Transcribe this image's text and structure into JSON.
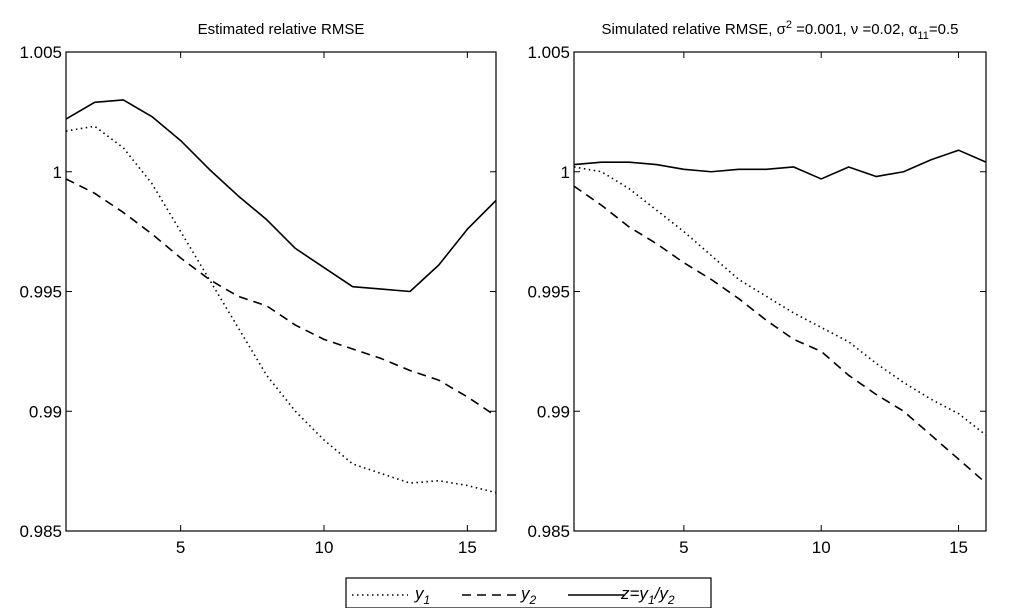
{
  "chart_data": [
    {
      "type": "line",
      "title": "Estimated relative RMSE",
      "xlabel": "",
      "ylabel": "",
      "xlim": [
        1,
        16
      ],
      "ylim": [
        0.985,
        1.005
      ],
      "xticks": [
        5,
        10,
        15
      ],
      "yticks": [
        0.985,
        0.99,
        0.995,
        1,
        1.005
      ],
      "ytick_labels": [
        "0.985",
        "0.99",
        "0.995",
        "1",
        "1.005"
      ],
      "grid": false,
      "x": [
        1,
        2,
        3,
        4,
        5,
        6,
        7,
        8,
        9,
        10,
        11,
        12,
        13,
        14,
        15,
        16
      ],
      "series": [
        {
          "key": "y1",
          "style": "dotted",
          "values": [
            1.0017,
            1.0019,
            1.001,
            0.9995,
            0.9975,
            0.9955,
            0.9935,
            0.9915,
            0.99,
            0.9888,
            0.9878,
            0.9874,
            0.987,
            0.9871,
            0.9869,
            0.9866
          ]
        },
        {
          "key": "y2",
          "style": "dashed",
          "values": [
            0.9997,
            0.9991,
            0.9983,
            0.9974,
            0.9964,
            0.9955,
            0.9948,
            0.9944,
            0.9936,
            0.993,
            0.9926,
            0.9922,
            0.9917,
            0.9913,
            0.9906,
            0.9898
          ]
        },
        {
          "key": "z",
          "style": "solid",
          "values": [
            1.0022,
            1.0029,
            1.003,
            1.0023,
            1.0013,
            1.0001,
            0.999,
            0.998,
            0.9968,
            0.996,
            0.9952,
            0.9951,
            0.995,
            0.9961,
            0.9976,
            0.9988
          ]
        }
      ]
    },
    {
      "type": "line",
      "title": "Simulated relative RMSE, σ",
      "title_sup": "2",
      "title_rest": " =0.001, ν =0.02, α",
      "title_sub": "11",
      "title_end": "=0.5",
      "xlabel": "",
      "ylabel": "",
      "xlim": [
        1,
        16
      ],
      "ylim": [
        0.985,
        1.005
      ],
      "xticks": [
        5,
        10,
        15
      ],
      "yticks": [
        0.985,
        0.99,
        0.995,
        1,
        1.005
      ],
      "ytick_labels": [
        "0.985",
        "0.99",
        "0.995",
        "1",
        "1.005"
      ],
      "grid": false,
      "x": [
        1,
        2,
        3,
        4,
        5,
        6,
        7,
        8,
        9,
        10,
        11,
        12,
        13,
        14,
        15,
        16
      ],
      "series": [
        {
          "key": "y1",
          "style": "dotted",
          "values": [
            1.0002,
            1.0,
            0.9993,
            0.9984,
            0.9975,
            0.9965,
            0.9955,
            0.9948,
            0.9941,
            0.9935,
            0.9929,
            0.992,
            0.9912,
            0.9905,
            0.9899,
            0.989
          ]
        },
        {
          "key": "y2",
          "style": "dashed",
          "values": [
            0.9994,
            0.9986,
            0.9977,
            0.997,
            0.9962,
            0.9955,
            0.9947,
            0.9938,
            0.993,
            0.9925,
            0.9915,
            0.9907,
            0.99,
            0.989,
            0.988,
            0.987
          ]
        },
        {
          "key": "z",
          "style": "solid",
          "values": [
            1.0003,
            1.0004,
            1.0004,
            1.0003,
            1.0001,
            1.0,
            1.0001,
            1.0001,
            1.0002,
            0.9997,
            1.0002,
            0.9998,
            1.0,
            1.0005,
            1.0009,
            1.0004
          ]
        }
      ]
    }
  ],
  "legend": {
    "placement": "bottom-center",
    "entries": [
      {
        "key": "y1",
        "style": "dotted",
        "base": "y",
        "sub": "1"
      },
      {
        "key": "y2",
        "style": "dashed",
        "base": "y",
        "sub": "2"
      },
      {
        "key": "z",
        "style": "solid",
        "pre": "z=y",
        "sub1": "1",
        "mid": "/y",
        "sub2": "2"
      }
    ]
  }
}
